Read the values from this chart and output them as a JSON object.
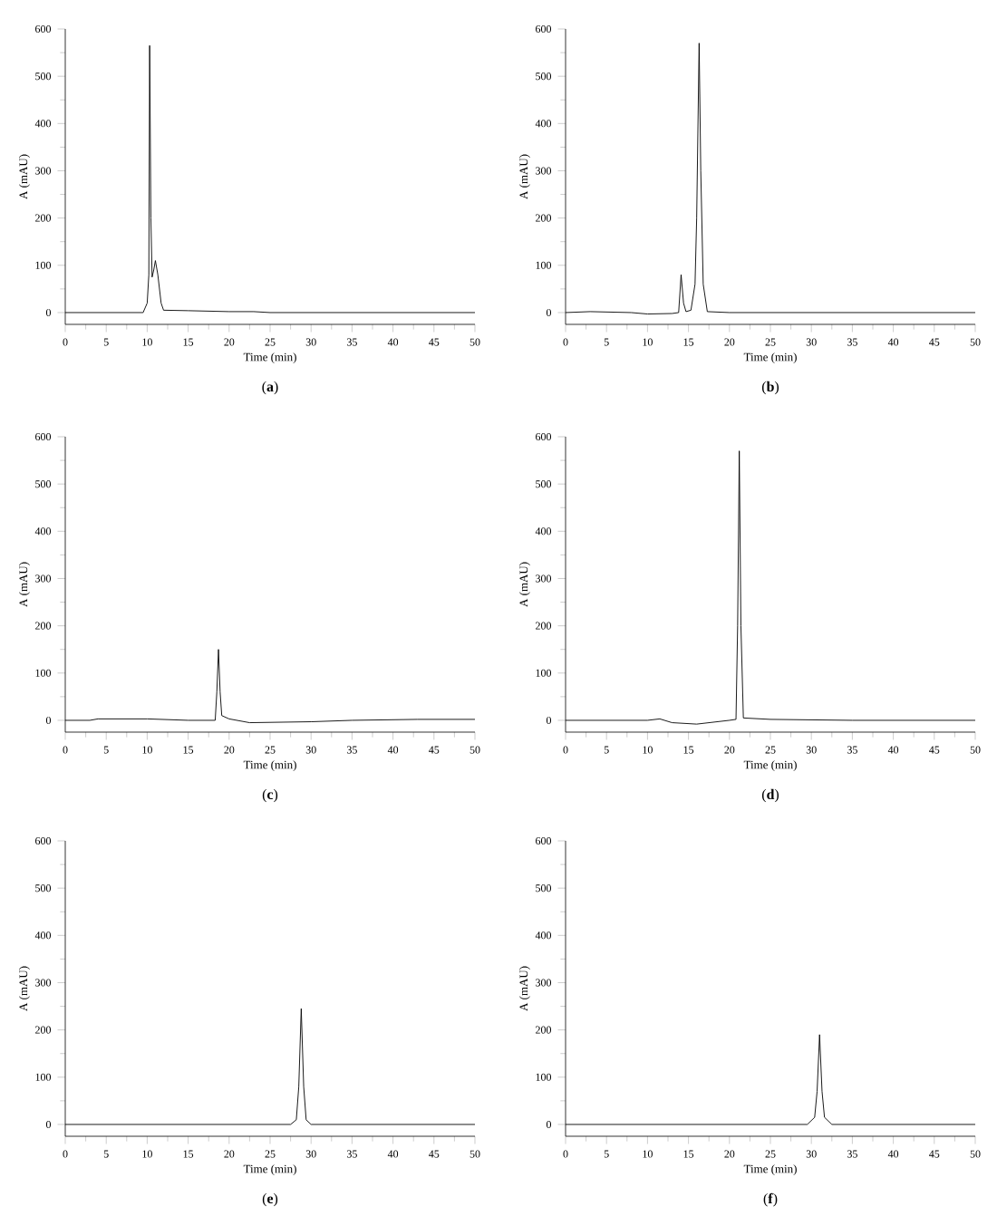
{
  "chart_data": [
    {
      "type": "line",
      "title": "(**a**)",
      "xlabel": "Time (min)",
      "ylabel": "A (mAU)",
      "xlim": [
        0,
        50
      ],
      "ylim": [
        -25,
        600
      ],
      "xticks": [
        0,
        5,
        10,
        15,
        20,
        25,
        30,
        35,
        40,
        45,
        50
      ],
      "yticks": [
        0,
        100,
        200,
        300,
        400,
        500,
        600
      ],
      "series": [
        {
          "color": "#000000",
          "x": [
            0,
            9.5,
            10.0,
            10.2,
            10.3,
            10.45,
            10.6,
            10.8,
            11.0,
            11.3,
            11.7,
            12.0,
            15,
            20,
            23,
            25,
            30,
            50
          ],
          "values": [
            0,
            0,
            20,
            80,
            565,
            200,
            75,
            90,
            110,
            80,
            20,
            5,
            4,
            2,
            2,
            0,
            0,
            0
          ]
        }
      ]
    },
    {
      "type": "line",
      "title": "(**b**)",
      "xlabel": "Time (min)",
      "ylabel": "A (mAU)",
      "xlim": [
        0,
        50
      ],
      "ylim": [
        -25,
        600
      ],
      "xticks": [
        0,
        5,
        10,
        15,
        20,
        25,
        30,
        35,
        40,
        45,
        50
      ],
      "yticks": [
        0,
        100,
        200,
        300,
        400,
        500,
        600
      ],
      "series": [
        {
          "color": "#000000",
          "x": [
            0,
            3,
            8,
            10,
            13,
            13.8,
            14.1,
            14.4,
            14.7,
            15.3,
            15.8,
            16.0,
            16.3,
            16.5,
            16.8,
            17.3,
            20,
            50
          ],
          "values": [
            0,
            2,
            0,
            -3,
            -2,
            0,
            80,
            20,
            2,
            5,
            60,
            200,
            570,
            300,
            60,
            2,
            0,
            0
          ]
        }
      ]
    },
    {
      "type": "line",
      "title": "(**c**)",
      "xlabel": "Time (min)",
      "ylabel": "A (mAU)",
      "xlim": [
        0,
        50
      ],
      "ylim": [
        -25,
        600
      ],
      "xticks": [
        0,
        5,
        10,
        15,
        20,
        25,
        30,
        35,
        40,
        45,
        50
      ],
      "yticks": [
        0,
        100,
        200,
        300,
        400,
        500,
        600
      ],
      "series": [
        {
          "color": "#000000",
          "x": [
            0,
            3,
            4,
            10,
            15,
            18.3,
            18.5,
            18.7,
            18.9,
            19.1,
            20,
            22.5,
            30,
            35,
            43,
            50
          ],
          "values": [
            0,
            0,
            3,
            3,
            0,
            0,
            60,
            150,
            60,
            10,
            3,
            -5,
            -3,
            0,
            2,
            2
          ]
        }
      ]
    },
    {
      "type": "line",
      "title": "(**d**)",
      "xlabel": "Time (min)",
      "ylabel": "A (mAU)",
      "xlim": [
        0,
        50
      ],
      "ylim": [
        -25,
        600
      ],
      "xticks": [
        0,
        5,
        10,
        15,
        20,
        25,
        30,
        35,
        40,
        45,
        50
      ],
      "yticks": [
        0,
        100,
        200,
        300,
        400,
        500,
        600
      ],
      "series": [
        {
          "color": "#000000",
          "x": [
            0,
            10,
            11.5,
            13,
            16,
            20,
            20.8,
            21.0,
            21.2,
            21.4,
            21.7,
            25,
            35,
            50
          ],
          "values": [
            0,
            0,
            3,
            -5,
            -8,
            0,
            2,
            200,
            570,
            200,
            5,
            2,
            0,
            0
          ]
        }
      ]
    },
    {
      "type": "line",
      "title": "(**e**)",
      "xlabel": "Time (min)",
      "ylabel": "A (mAU)",
      "xlim": [
        0,
        50
      ],
      "ylim": [
        -25,
        600
      ],
      "xticks": [
        0,
        5,
        10,
        15,
        20,
        25,
        30,
        35,
        40,
        45,
        50
      ],
      "yticks": [
        0,
        100,
        200,
        300,
        400,
        500,
        600
      ],
      "series": [
        {
          "color": "#000000",
          "x": [
            0,
            27.5,
            28.2,
            28.5,
            28.8,
            29.1,
            29.4,
            30,
            50
          ],
          "values": [
            0,
            0,
            10,
            80,
            245,
            80,
            10,
            0,
            0
          ]
        }
      ]
    },
    {
      "type": "line",
      "title": "(**f**)",
      "xlabel": "Time (min)",
      "ylabel": "A (mAU)",
      "xlim": [
        0,
        50
      ],
      "ylim": [
        -25,
        600
      ],
      "xticks": [
        0,
        5,
        10,
        15,
        20,
        25,
        30,
        35,
        40,
        45,
        50
      ],
      "yticks": [
        0,
        100,
        200,
        300,
        400,
        500,
        600
      ],
      "series": [
        {
          "color": "#000000",
          "x": [
            0,
            29.5,
            30.4,
            30.7,
            31.0,
            31.3,
            31.6,
            32.5,
            50
          ],
          "values": [
            0,
            0,
            15,
            70,
            190,
            70,
            15,
            0,
            0
          ]
        }
      ]
    }
  ]
}
